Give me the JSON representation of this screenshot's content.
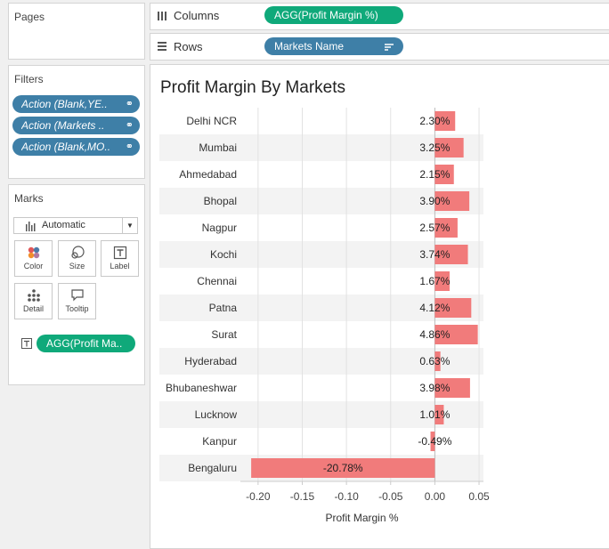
{
  "pages": {
    "title": "Pages"
  },
  "filters": {
    "title": "Filters",
    "items": [
      {
        "label": "Action (Blank,YE.."
      },
      {
        "label": "Action (Markets .."
      },
      {
        "label": "Action (Blank,MO.."
      }
    ]
  },
  "marks": {
    "title": "Marks",
    "type_selected": "Automatic",
    "buttons": {
      "color": "Color",
      "size": "Size",
      "label": "Label",
      "detail": "Detail",
      "tooltip": "Tooltip"
    },
    "label_field": "AGG(Profit Ma.."
  },
  "shelves": {
    "columns_label": "Columns",
    "columns_pill": "AGG(Profit Margin %)",
    "rows_label": "Rows",
    "rows_pill": "Markets Name"
  },
  "colors": {
    "bar": "#f17b7b",
    "pill_green": "#0fa97a",
    "pill_blue": "#3e7fa7"
  },
  "chart_data": {
    "type": "bar",
    "orientation": "horizontal",
    "title": "Profit Margin By Markets",
    "xlabel": "Profit Margin %",
    "categories": [
      "Delhi NCR",
      "Mumbai",
      "Ahmedabad",
      "Bhopal",
      "Nagpur",
      "Kochi",
      "Chennai",
      "Patna",
      "Surat",
      "Hyderabad",
      "Bhubaneshwar",
      "Lucknow",
      "Kanpur",
      "Bengaluru"
    ],
    "values": [
      0.023,
      0.0325,
      0.0215,
      0.039,
      0.0257,
      0.0374,
      0.0167,
      0.0412,
      0.0486,
      0.0063,
      0.0398,
      0.0101,
      -0.0049,
      -0.2078
    ],
    "data_labels": [
      "2.30%",
      "3.25%",
      "2.15%",
      "3.90%",
      "2.57%",
      "3.74%",
      "1.67%",
      "4.12%",
      "4.86%",
      "0.63%",
      "3.98%",
      "1.01%",
      "-0.49%",
      "-20.78%"
    ],
    "xticks": [
      -0.2,
      -0.15,
      -0.1,
      -0.05,
      0.0,
      0.05
    ],
    "xtick_labels": [
      "-0.20",
      "-0.15",
      "-0.10",
      "-0.05",
      "0.00",
      "0.05"
    ],
    "xlim": [
      -0.22,
      0.055
    ],
    "grid": true
  }
}
